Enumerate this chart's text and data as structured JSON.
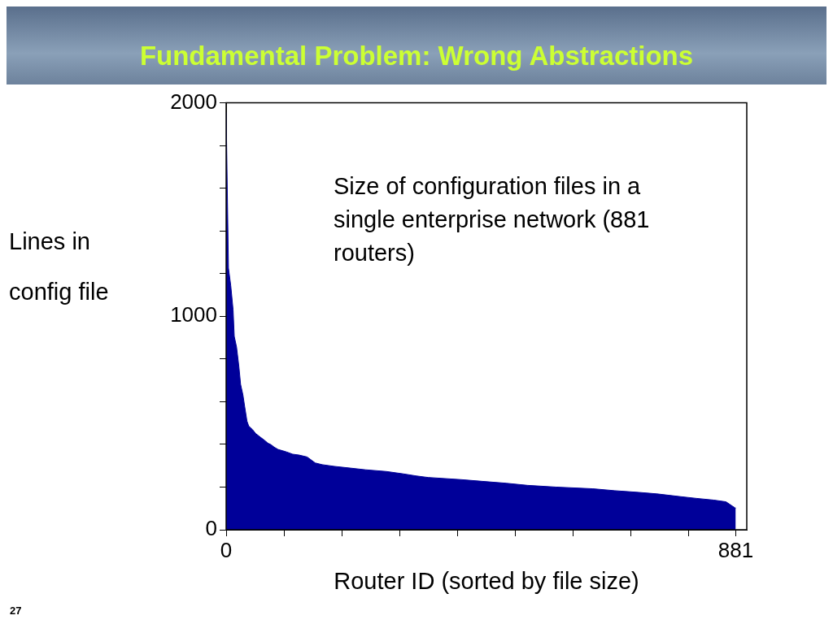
{
  "chart_data": {
    "type": "area",
    "title": "Fundamental Problem: Wrong Abstractions",
    "xlabel": "Router ID (sorted by file size)",
    "ylabel": "Lines in\nconfig file",
    "annotations": [
      "Size of configuration files in a single enterprise network (881 routers)",
      "27"
    ],
    "x": [
      0,
      4,
      8,
      12,
      14,
      18,
      22,
      25,
      29,
      32,
      36,
      39,
      46,
      51,
      60,
      66,
      72,
      78,
      83,
      90,
      98,
      105,
      115,
      126,
      140,
      154,
      166,
      187,
      211,
      241,
      277,
      306,
      329,
      349,
      406,
      442,
      484,
      521,
      570,
      634,
      672,
      714,
      745,
      786,
      813,
      843,
      864,
      880,
      881
    ],
    "series": [
      {
        "color": "#000099",
        "values": [
          1956,
          1226,
          1143,
          1030,
          906,
          856,
          765,
          681,
          632,
          578,
          509,
          486,
          468,
          451,
          432,
          420,
          406,
          398,
          387,
          376,
          370,
          364,
          354,
          350,
          341,
          313,
          305,
          297,
          290,
          281,
          273,
          262,
          252,
          245,
          235,
          227,
          218,
          208,
          200,
          192,
          183,
          175,
          168,
          155,
          147,
          139,
          131,
          102,
          102
        ]
      }
    ],
    "xlim": [
      0,
      900
    ],
    "xticks": [
      0,
      {
        "value": 100,
        "label": null
      },
      {
        "value": 200,
        "label": null
      },
      {
        "value": 300,
        "label": null
      },
      {
        "value": 400,
        "label": null
      },
      {
        "value": 500,
        "label": null
      },
      {
        "value": 600,
        "label": null
      },
      {
        "value": 700,
        "label": null
      },
      {
        "value": 800,
        "label": null
      },
      881
    ],
    "ylim": [
      0,
      2000
    ],
    "yticks": [
      0,
      {
        "value": 200,
        "label": null
      },
      {
        "value": 400,
        "label": null
      },
      {
        "value": 600,
        "label": null
      },
      {
        "value": 800,
        "label": null
      },
      1000,
      {
        "value": 1200,
        "label": null
      },
      {
        "value": 1400,
        "label": null
      },
      {
        "value": 1600,
        "label": null
      },
      {
        "value": 1800,
        "label": null
      },
      2000
    ],
    "grid": false,
    "legend": false
  }
}
